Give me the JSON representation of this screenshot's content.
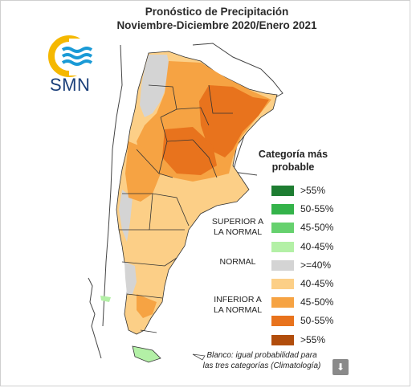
{
  "title": {
    "line1": "Pronóstico de Precipitación",
    "line2": "Noviembre-Diciembre 2020/Enero 2021"
  },
  "logo": {
    "text": "SMN",
    "icon": "smn-logo"
  },
  "legend": {
    "title_line1": "Categoría más",
    "title_line2": "probable",
    "items": [
      {
        "label": ">55%",
        "color": "#1e7d32",
        "group": "superior"
      },
      {
        "label": "50-55%",
        "color": "#34b34a",
        "group": "superior"
      },
      {
        "label": "45-50%",
        "color": "#66d16e",
        "group": "superior"
      },
      {
        "label": "40-45%",
        "color": "#b3f0a6",
        "group": "superior"
      },
      {
        "label": ">=40%",
        "color": "#d4d4d4",
        "group": "normal"
      },
      {
        "label": "40-45%",
        "color": "#fccf87",
        "group": "inferior"
      },
      {
        "label": "45-50%",
        "color": "#f6a343",
        "group": "inferior"
      },
      {
        "label": "50-55%",
        "color": "#e8731d",
        "group": "inferior"
      },
      {
        "label": ">55%",
        "color": "#b14d0c",
        "group": "inferior"
      }
    ],
    "groups": {
      "superior_line1": "SUPERIOR A",
      "superior_line2": "LA NORMAL",
      "normal": "NORMAL",
      "inferior_line1": "INFERIOR A",
      "inferior_line2": "LA NORMAL"
    }
  },
  "footnote": {
    "line1": "Blanco: igual probabilidad para",
    "line2": "las tres categorías (Climatología)"
  },
  "download_icon": "download-arrow-icon",
  "colors": {
    "light_orange": "#fccf87",
    "mid_orange": "#f6a343",
    "dark_orange": "#e8731d",
    "grey": "#d4d4d4",
    "light_green": "#b3f0a6"
  }
}
